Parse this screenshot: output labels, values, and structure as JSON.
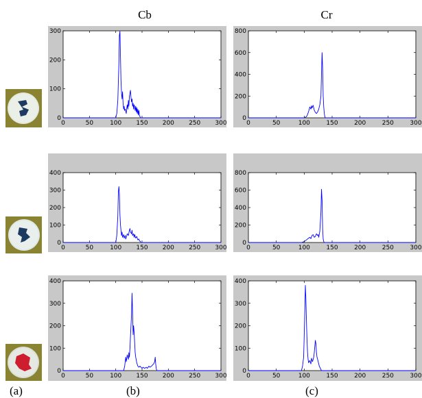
{
  "column_headers": [
    "Cb",
    "Cr"
  ],
  "panel_labels": [
    "(a)",
    "(b)",
    "(c)"
  ],
  "chart_data": [
    {
      "type": "line",
      "row": 1,
      "column": "Cb",
      "xlim": [
        0,
        300
      ],
      "ylim": [
        0,
        300
      ],
      "xticks": [
        0,
        50,
        100,
        150,
        200,
        250,
        300
      ],
      "yticks": [
        0,
        100,
        200,
        300
      ],
      "series": [
        {
          "color": "#0000ff",
          "points": [
            [
              0,
              0
            ],
            [
              100,
              0
            ],
            [
              102,
              15
            ],
            [
              104,
              60
            ],
            [
              106,
              190
            ],
            [
              107,
              285
            ],
            [
              108,
              298
            ],
            [
              109,
              210
            ],
            [
              110,
              130
            ],
            [
              111,
              85
            ],
            [
              112,
              65
            ],
            [
              113,
              90
            ],
            [
              114,
              50
            ],
            [
              115,
              30
            ],
            [
              116,
              40
            ],
            [
              117,
              25
            ],
            [
              118,
              30
            ],
            [
              120,
              15
            ],
            [
              121,
              35
            ],
            [
              122,
              45
            ],
            [
              123,
              30
            ],
            [
              124,
              60
            ],
            [
              125,
              40
            ],
            [
              126,
              75
            ],
            [
              127,
              85
            ],
            [
              128,
              95
            ],
            [
              129,
              70
            ],
            [
              130,
              55
            ],
            [
              131,
              65
            ],
            [
              132,
              40
            ],
            [
              133,
              50
            ],
            [
              134,
              30
            ],
            [
              135,
              45
            ],
            [
              136,
              35
            ],
            [
              137,
              25
            ],
            [
              138,
              40
            ],
            [
              139,
              20
            ],
            [
              140,
              35
            ],
            [
              141,
              15
            ],
            [
              142,
              30
            ],
            [
              143,
              10
            ],
            [
              144,
              25
            ],
            [
              145,
              8
            ],
            [
              146,
              5
            ],
            [
              147,
              0
            ],
            [
              300,
              0
            ]
          ]
        }
      ]
    },
    {
      "type": "line",
      "row": 1,
      "column": "Cr",
      "xlim": [
        0,
        300
      ],
      "ylim": [
        0,
        800
      ],
      "xticks": [
        0,
        50,
        100,
        150,
        200,
        250,
        300
      ],
      "yticks": [
        0,
        200,
        400,
        600,
        800
      ],
      "series": [
        {
          "color": "#0000ff",
          "points": [
            [
              0,
              0
            ],
            [
              100,
              0
            ],
            [
              104,
              10
            ],
            [
              106,
              30
            ],
            [
              108,
              60
            ],
            [
              110,
              100
            ],
            [
              112,
              80
            ],
            [
              113,
              110
            ],
            [
              114,
              90
            ],
            [
              116,
              115
            ],
            [
              118,
              70
            ],
            [
              120,
              50
            ],
            [
              122,
              40
            ],
            [
              124,
              55
            ],
            [
              126,
              80
            ],
            [
              128,
              120
            ],
            [
              130,
              200
            ],
            [
              131,
              400
            ],
            [
              132,
              600
            ],
            [
              133,
              450
            ],
            [
              134,
              200
            ],
            [
              135,
              100
            ],
            [
              136,
              40
            ],
            [
              137,
              10
            ],
            [
              138,
              0
            ],
            [
              300,
              0
            ]
          ]
        }
      ]
    },
    {
      "type": "line",
      "row": 2,
      "column": "Cb",
      "xlim": [
        0,
        300
      ],
      "ylim": [
        0,
        400
      ],
      "xticks": [
        0,
        50,
        100,
        150,
        200,
        250,
        300
      ],
      "yticks": [
        0,
        100,
        200,
        300,
        400
      ],
      "series": [
        {
          "color": "#0000ff",
          "points": [
            [
              0,
              0
            ],
            [
              100,
              0
            ],
            [
              102,
              40
            ],
            [
              104,
              150
            ],
            [
              105,
              290
            ],
            [
              106,
              320
            ],
            [
              107,
              280
            ],
            [
              108,
              160
            ],
            [
              109,
              100
            ],
            [
              110,
              70
            ],
            [
              111,
              40
            ],
            [
              112,
              60
            ],
            [
              113,
              30
            ],
            [
              115,
              45
            ],
            [
              116,
              25
            ],
            [
              118,
              40
            ],
            [
              119,
              20
            ],
            [
              120,
              30
            ],
            [
              122,
              50
            ],
            [
              124,
              40
            ],
            [
              126,
              70
            ],
            [
              127,
              80
            ],
            [
              128,
              60
            ],
            [
              130,
              50
            ],
            [
              131,
              70
            ],
            [
              132,
              40
            ],
            [
              134,
              50
            ],
            [
              135,
              30
            ],
            [
              136,
              45
            ],
            [
              138,
              25
            ],
            [
              140,
              35
            ],
            [
              142,
              15
            ],
            [
              144,
              20
            ],
            [
              145,
              10
            ],
            [
              147,
              5
            ],
            [
              148,
              0
            ],
            [
              300,
              0
            ]
          ]
        }
      ]
    },
    {
      "type": "line",
      "row": 2,
      "column": "Cr",
      "xlim": [
        0,
        300
      ],
      "ylim": [
        0,
        800
      ],
      "xticks": [
        0,
        50,
        100,
        150,
        200,
        250,
        300
      ],
      "yticks": [
        0,
        200,
        400,
        600,
        800
      ],
      "series": [
        {
          "color": "#0000ff",
          "points": [
            [
              0,
              0
            ],
            [
              95,
              0
            ],
            [
              100,
              10
            ],
            [
              104,
              30
            ],
            [
              108,
              50
            ],
            [
              110,
              60
            ],
            [
              112,
              45
            ],
            [
              114,
              80
            ],
            [
              116,
              90
            ],
            [
              118,
              60
            ],
            [
              120,
              70
            ],
            [
              122,
              100
            ],
            [
              124,
              80
            ],
            [
              125,
              90
            ],
            [
              126,
              60
            ],
            [
              128,
              130
            ],
            [
              130,
              350
            ],
            [
              131,
              610
            ],
            [
              132,
              480
            ],
            [
              133,
              150
            ],
            [
              134,
              40
            ],
            [
              135,
              10
            ],
            [
              136,
              0
            ],
            [
              300,
              0
            ]
          ]
        }
      ]
    },
    {
      "type": "line",
      "row": 3,
      "column": "Cb",
      "xlim": [
        0,
        300
      ],
      "ylim": [
        0,
        400
      ],
      "xticks": [
        0,
        50,
        100,
        150,
        200,
        250,
        300
      ],
      "yticks": [
        0,
        100,
        200,
        300,
        400
      ],
      "series": [
        {
          "color": "#0000ff",
          "points": [
            [
              0,
              0
            ],
            [
              115,
              0
            ],
            [
              117,
              20
            ],
            [
              119,
              60
            ],
            [
              120,
              40
            ],
            [
              122,
              70
            ],
            [
              124,
              50
            ],
            [
              125,
              80
            ],
            [
              126,
              60
            ],
            [
              127,
              100
            ],
            [
              128,
              150
            ],
            [
              129,
              200
            ],
            [
              130,
              250
            ],
            [
              131,
              345
            ],
            [
              132,
              260
            ],
            [
              133,
              160
            ],
            [
              134,
              200
            ],
            [
              135,
              170
            ],
            [
              136,
              120
            ],
            [
              137,
              80
            ],
            [
              138,
              60
            ],
            [
              140,
              35
            ],
            [
              142,
              20
            ],
            [
              144,
              15
            ],
            [
              146,
              20
            ],
            [
              148,
              15
            ],
            [
              150,
              10
            ],
            [
              152,
              15
            ],
            [
              155,
              10
            ],
            [
              158,
              15
            ],
            [
              160,
              10
            ],
            [
              163,
              20
            ],
            [
              165,
              15
            ],
            [
              168,
              20
            ],
            [
              170,
              25
            ],
            [
              172,
              30
            ],
            [
              174,
              40
            ],
            [
              175,
              60
            ],
            [
              176,
              30
            ],
            [
              177,
              10
            ],
            [
              178,
              0
            ],
            [
              300,
              0
            ]
          ]
        }
      ]
    },
    {
      "type": "line",
      "row": 3,
      "column": "Cr",
      "xlim": [
        0,
        300
      ],
      "ylim": [
        0,
        400
      ],
      "xticks": [
        0,
        50,
        100,
        150,
        200,
        250,
        300
      ],
      "yticks": [
        0,
        100,
        200,
        300,
        400
      ],
      "series": [
        {
          "color": "#0000ff",
          "points": [
            [
              0,
              0
            ],
            [
              95,
              0
            ],
            [
              97,
              20
            ],
            [
              99,
              60
            ],
            [
              100,
              150
            ],
            [
              101,
              250
            ],
            [
              102,
              380
            ],
            [
              103,
              320
            ],
            [
              104,
              220
            ],
            [
              105,
              140
            ],
            [
              106,
              80
            ],
            [
              107,
              50
            ],
            [
              108,
              35
            ],
            [
              110,
              45
            ],
            [
              112,
              30
            ],
            [
              113,
              55
            ],
            [
              115,
              40
            ],
            [
              117,
              60
            ],
            [
              118,
              80
            ],
            [
              119,
              110
            ],
            [
              120,
              135
            ],
            [
              121,
              120
            ],
            [
              122,
              80
            ],
            [
              123,
              60
            ],
            [
              124,
              50
            ],
            [
              125,
              40
            ],
            [
              127,
              20
            ],
            [
              129,
              10
            ],
            [
              131,
              0
            ],
            [
              300,
              0
            ]
          ]
        }
      ]
    }
  ]
}
